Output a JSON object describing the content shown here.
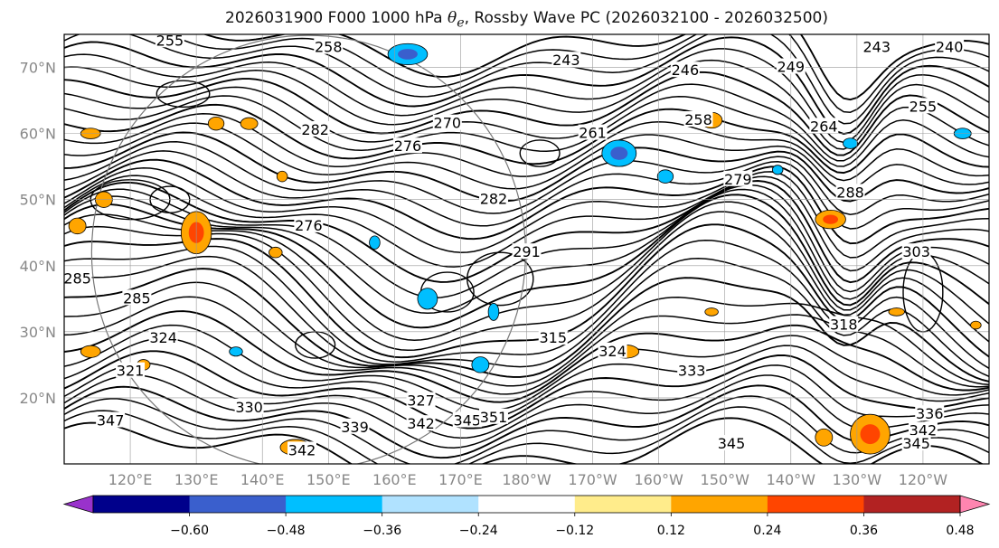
{
  "title": {
    "prefix": "2026031900 F000 1000 hPa",
    "symbol": "θ",
    "subscript": "e",
    "suffix": ", Rossby Wave PC (2026032100 - 2026032500)"
  },
  "axes": {
    "lat_labels": [
      "70°N",
      "60°N",
      "50°N",
      "40°N",
      "30°N",
      "20°N"
    ],
    "lat_values": [
      70,
      60,
      50,
      40,
      30,
      20
    ],
    "lon_labels": [
      "120°E",
      "130°E",
      "140°E",
      "150°E",
      "160°E",
      "170°E",
      "180°W",
      "170°W",
      "160°W",
      "150°W",
      "140°W",
      "130°W",
      "120°W"
    ],
    "lon_extent": [
      110,
      250
    ],
    "lat_extent": [
      10,
      75
    ],
    "label_color": "#888888"
  },
  "contour_labels": [
    {
      "text": "255",
      "lon": 126.0,
      "lat": 74.0
    },
    {
      "text": "258",
      "lon": 150.0,
      "lat": 73.0
    },
    {
      "text": "243",
      "lon": 186.0,
      "lat": 71.0
    },
    {
      "text": "246",
      "lon": 204.0,
      "lat": 69.5
    },
    {
      "text": "249",
      "lon": 220.0,
      "lat": 70.0
    },
    {
      "text": "243",
      "lon": 233.0,
      "lat": 73.0
    },
    {
      "text": "240",
      "lon": 244.0,
      "lat": 73.0
    },
    {
      "text": "255",
      "lon": 240.0,
      "lat": 64.0
    },
    {
      "text": "258",
      "lon": 206.0,
      "lat": 62.0
    },
    {
      "text": "264",
      "lon": 225.0,
      "lat": 61.0
    },
    {
      "text": "261",
      "lon": 190.0,
      "lat": 60.0
    },
    {
      "text": "282",
      "lon": 148.0,
      "lat": 60.5
    },
    {
      "text": "270",
      "lon": 168.0,
      "lat": 61.5
    },
    {
      "text": "276",
      "lon": 162.0,
      "lat": 58.0
    },
    {
      "text": "279",
      "lon": 212.0,
      "lat": 53.0
    },
    {
      "text": "282",
      "lon": 175.0,
      "lat": 50.0
    },
    {
      "text": "288",
      "lon": 229.0,
      "lat": 51.0
    },
    {
      "text": "276",
      "lon": 147.0,
      "lat": 46.0
    },
    {
      "text": "291",
      "lon": 180.0,
      "lat": 42.0
    },
    {
      "text": "303",
      "lon": 239.0,
      "lat": 42.0
    },
    {
      "text": "285",
      "lon": 112.0,
      "lat": 38.0
    },
    {
      "text": "285",
      "lon": 121.0,
      "lat": 35.0
    },
    {
      "text": "318",
      "lon": 228.0,
      "lat": 31.0
    },
    {
      "text": "315",
      "lon": 184.0,
      "lat": 29.0
    },
    {
      "text": "324",
      "lon": 125.0,
      "lat": 29.0
    },
    {
      "text": "324",
      "lon": 193.0,
      "lat": 27.0
    },
    {
      "text": "321",
      "lon": 120.0,
      "lat": 24.0
    },
    {
      "text": "333",
      "lon": 205.0,
      "lat": 24.0
    },
    {
      "text": "327",
      "lon": 164.0,
      "lat": 19.5
    },
    {
      "text": "330",
      "lon": 138.0,
      "lat": 18.5
    },
    {
      "text": "336",
      "lon": 241.0,
      "lat": 17.5
    },
    {
      "text": "347",
      "lon": 117.0,
      "lat": 16.5
    },
    {
      "text": "339",
      "lon": 154.0,
      "lat": 15.5
    },
    {
      "text": "342",
      "lon": 164.0,
      "lat": 16.0
    },
    {
      "text": "345",
      "lon": 171.0,
      "lat": 16.5
    },
    {
      "text": "351",
      "lon": 175.0,
      "lat": 17.0
    },
    {
      "text": "342",
      "lon": 240.0,
      "lat": 15.0
    },
    {
      "text": "345",
      "lon": 211.0,
      "lat": 13.0
    },
    {
      "text": "345",
      "lon": 239.0,
      "lat": 13.0
    },
    {
      "text": "342",
      "lon": 146.0,
      "lat": 12.0
    }
  ],
  "anomalies": [
    {
      "sign": "neg",
      "lon": 162,
      "lat": 72,
      "rx": 3.0,
      "ry": 1.6
    },
    {
      "sign": "neg",
      "lon": 194.0,
      "lat": 57.0,
      "rx": 2.6,
      "ry": 2.0
    },
    {
      "sign": "neg",
      "lon": 201.0,
      "lat": 53.5,
      "rx": 1.2,
      "ry": 1.0
    },
    {
      "sign": "neg",
      "lon": 165,
      "lat": 35,
      "rx": 1.5,
      "ry": 1.6
    },
    {
      "sign": "neg",
      "lon": 157,
      "lat": 43.5,
      "rx": 0.8,
      "ry": 1.0
    },
    {
      "sign": "neg",
      "lon": 175,
      "lat": 33,
      "rx": 0.8,
      "ry": 1.3
    },
    {
      "sign": "neg",
      "lon": 173,
      "lat": 25,
      "rx": 1.3,
      "ry": 1.2
    },
    {
      "sign": "neg",
      "lon": 136,
      "lat": 27,
      "rx": 1.0,
      "ry": 0.7
    },
    {
      "sign": "neg",
      "lon": 218,
      "lat": 54.5,
      "rx": 0.8,
      "ry": 0.7
    },
    {
      "sign": "neg",
      "lon": 229,
      "lat": 58.5,
      "rx": 1.1,
      "ry": 0.8
    },
    {
      "sign": "neg",
      "lon": 246,
      "lat": 60,
      "rx": 1.3,
      "ry": 0.8
    },
    {
      "sign": "pos",
      "lon": 133,
      "lat": 61.5,
      "rx": 1.2,
      "ry": 1.0
    },
    {
      "sign": "pos",
      "lon": 138,
      "lat": 61.5,
      "rx": 1.3,
      "ry": 0.9
    },
    {
      "sign": "pos",
      "lon": 114,
      "lat": 60,
      "rx": 1.5,
      "ry": 0.8
    },
    {
      "sign": "pos",
      "lon": 130,
      "lat": 45,
      "rx": 2.3,
      "ry": 3.2
    },
    {
      "sign": "pos",
      "lon": 116,
      "lat": 50,
      "rx": 1.3,
      "ry": 1.2
    },
    {
      "sign": "pos",
      "lon": 112,
      "lat": 46,
      "rx": 1.3,
      "ry": 1.2
    },
    {
      "sign": "pos",
      "lon": 143,
      "lat": 53.5,
      "rx": 0.8,
      "ry": 0.8
    },
    {
      "sign": "pos",
      "lon": 142,
      "lat": 42,
      "rx": 1.0,
      "ry": 0.8
    },
    {
      "sign": "pos",
      "lon": 226,
      "lat": 47,
      "rx": 2.3,
      "ry": 1.4
    },
    {
      "sign": "pos",
      "lon": 208,
      "lat": 62,
      "rx": 1.6,
      "ry": 1.2
    },
    {
      "sign": "pos",
      "lon": 122,
      "lat": 25,
      "rx": 1.0,
      "ry": 0.8
    },
    {
      "sign": "pos",
      "lon": 114,
      "lat": 27,
      "rx": 1.5,
      "ry": 0.9
    },
    {
      "sign": "pos",
      "lon": 195,
      "lat": 27,
      "rx": 2.0,
      "ry": 1.0
    },
    {
      "sign": "pos",
      "lon": 145,
      "lat": 12.5,
      "rx": 2.3,
      "ry": 1.2
    },
    {
      "sign": "pos",
      "lon": 232,
      "lat": 14.5,
      "rx": 3.0,
      "ry": 3.0
    },
    {
      "sign": "pos",
      "lon": 225,
      "lat": 14,
      "rx": 1.3,
      "ry": 1.3
    },
    {
      "sign": "pos",
      "lon": 208,
      "lat": 33,
      "rx": 1.0,
      "ry": 0.6
    },
    {
      "sign": "pos",
      "lon": 236,
      "lat": 33,
      "rx": 1.2,
      "ry": 0.6
    },
    {
      "sign": "pos",
      "lon": 248,
      "lat": 31,
      "rx": 0.8,
      "ry": 0.6
    }
  ],
  "colorbar": {
    "colors": [
      "#9932CC",
      "#00008B",
      "#3A5FCD",
      "#00BFFF",
      "#B0E2FF",
      "#FFFFFF",
      "#FFEC8B",
      "#FFA500",
      "#FF4500",
      "#B22222",
      "#FF85B0"
    ],
    "boundaries": [
      -0.6,
      -0.48,
      -0.36,
      -0.24,
      -0.12,
      0.12,
      0.24,
      0.36,
      0.48,
      0.6
    ],
    "tick_labels": [
      "−0.60",
      "−0.48",
      "−0.36",
      "−0.24",
      "−0.12",
      "0.12",
      "0.24",
      "0.36",
      "0.48",
      "0.60"
    ]
  }
}
